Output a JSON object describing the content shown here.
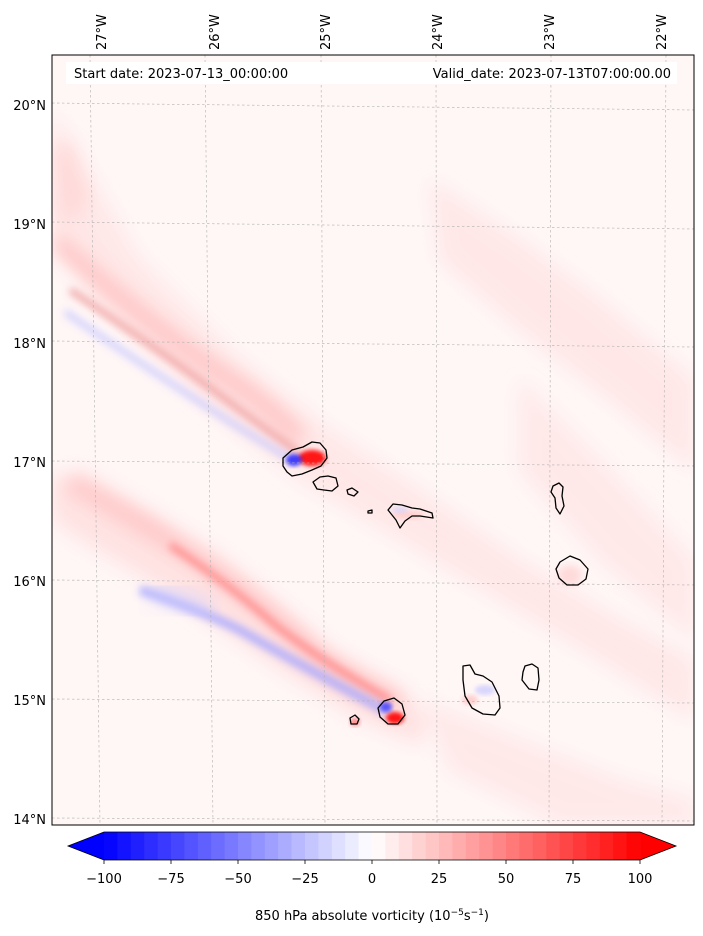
{
  "header": {
    "start_date": "Start date: 2023-07-13_00:00:00",
    "valid_date": "Valid_date: 2023-07-13T07:00:00.00"
  },
  "longitude_labels": [
    "27°W",
    "26°W",
    "25°W",
    "24°W",
    "23°W",
    "22°W"
  ],
  "latitude_labels": [
    "20°N",
    "19°N",
    "18°N",
    "17°N",
    "16°N",
    "15°N",
    "14°N"
  ],
  "colorbar": {
    "tick_labels": [
      "−100",
      "−75",
      "−50",
      "−25",
      "0",
      "25",
      "50",
      "75",
      "100"
    ],
    "ticks": [
      -100,
      -75,
      -50,
      -25,
      0,
      25,
      50,
      75,
      100
    ],
    "range": [
      -100,
      100
    ],
    "extend": "both",
    "label_main": "850 hPa absolute vorticity (10",
    "label_exp1": "−5",
    "label_mid": "s",
    "label_exp2": "−1",
    "label_end": ")",
    "colormap": "bwr",
    "low_color": "#0000ff",
    "mid_color": "#ffffff",
    "high_color": "#ff0000"
  },
  "map": {
    "lon_range": [
      -27.35,
      -21.8
    ],
    "lat_range": [
      13.95,
      20.4
    ],
    "gridlines": true,
    "coastline_color": "#000000",
    "islands": [
      "Santo Antão",
      "São Vicente",
      "Santa Luzia",
      "São Nicolau",
      "Sal",
      "Boa Vista",
      "Maio",
      "Santiago",
      "Fogo",
      "Brava"
    ]
  }
}
